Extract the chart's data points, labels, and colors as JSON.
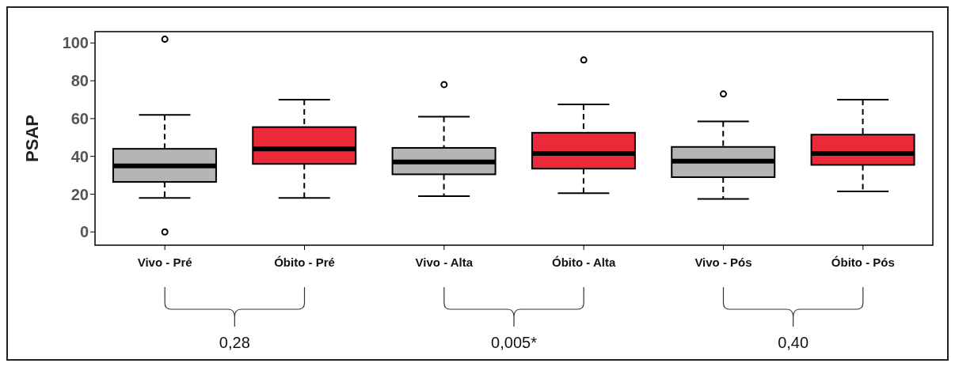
{
  "chart_data": {
    "type": "box",
    "ylabel": "PSAP",
    "categories": [
      "Vivo - Pré",
      "Óbito - Pré",
      "Vivo - Alta",
      "Óbito - Alta",
      "Vivo - Pós",
      "Óbito - Pós"
    ],
    "boxes": [
      {
        "low": 18,
        "q1": 26.5,
        "median": 35,
        "q3": 44,
        "high": 62,
        "outliers": [
          102,
          0
        ]
      },
      {
        "low": 18,
        "q1": 36,
        "median": 44,
        "q3": 55.5,
        "high": 70
      },
      {
        "low": 19,
        "q1": 30.5,
        "median": 37,
        "q3": 44.5,
        "high": 61,
        "outliers": [
          78
        ]
      },
      {
        "low": 20.5,
        "q1": 33.5,
        "median": 41.5,
        "q3": 52.5,
        "high": 67.5,
        "outliers": [
          91
        ]
      },
      {
        "low": 17.5,
        "q1": 29,
        "median": 37.5,
        "q3": 45,
        "high": 58.5,
        "outliers": [
          73
        ]
      },
      {
        "low": 21.5,
        "q1": 35.5,
        "median": 41.5,
        "q3": 51.5,
        "high": 70
      }
    ],
    "colors": [
      "#b4b5b4",
      "#ea2a39",
      "#b4b5b4",
      "#ea2a39",
      "#b4b5b4",
      "#ea2a39"
    ],
    "ylim": [
      -7,
      106
    ],
    "yticks": [
      0,
      20,
      40,
      60,
      80,
      100
    ],
    "grid": false,
    "legend": false,
    "annotations": [
      "0,28",
      "0,005*",
      "0,40"
    ]
  }
}
